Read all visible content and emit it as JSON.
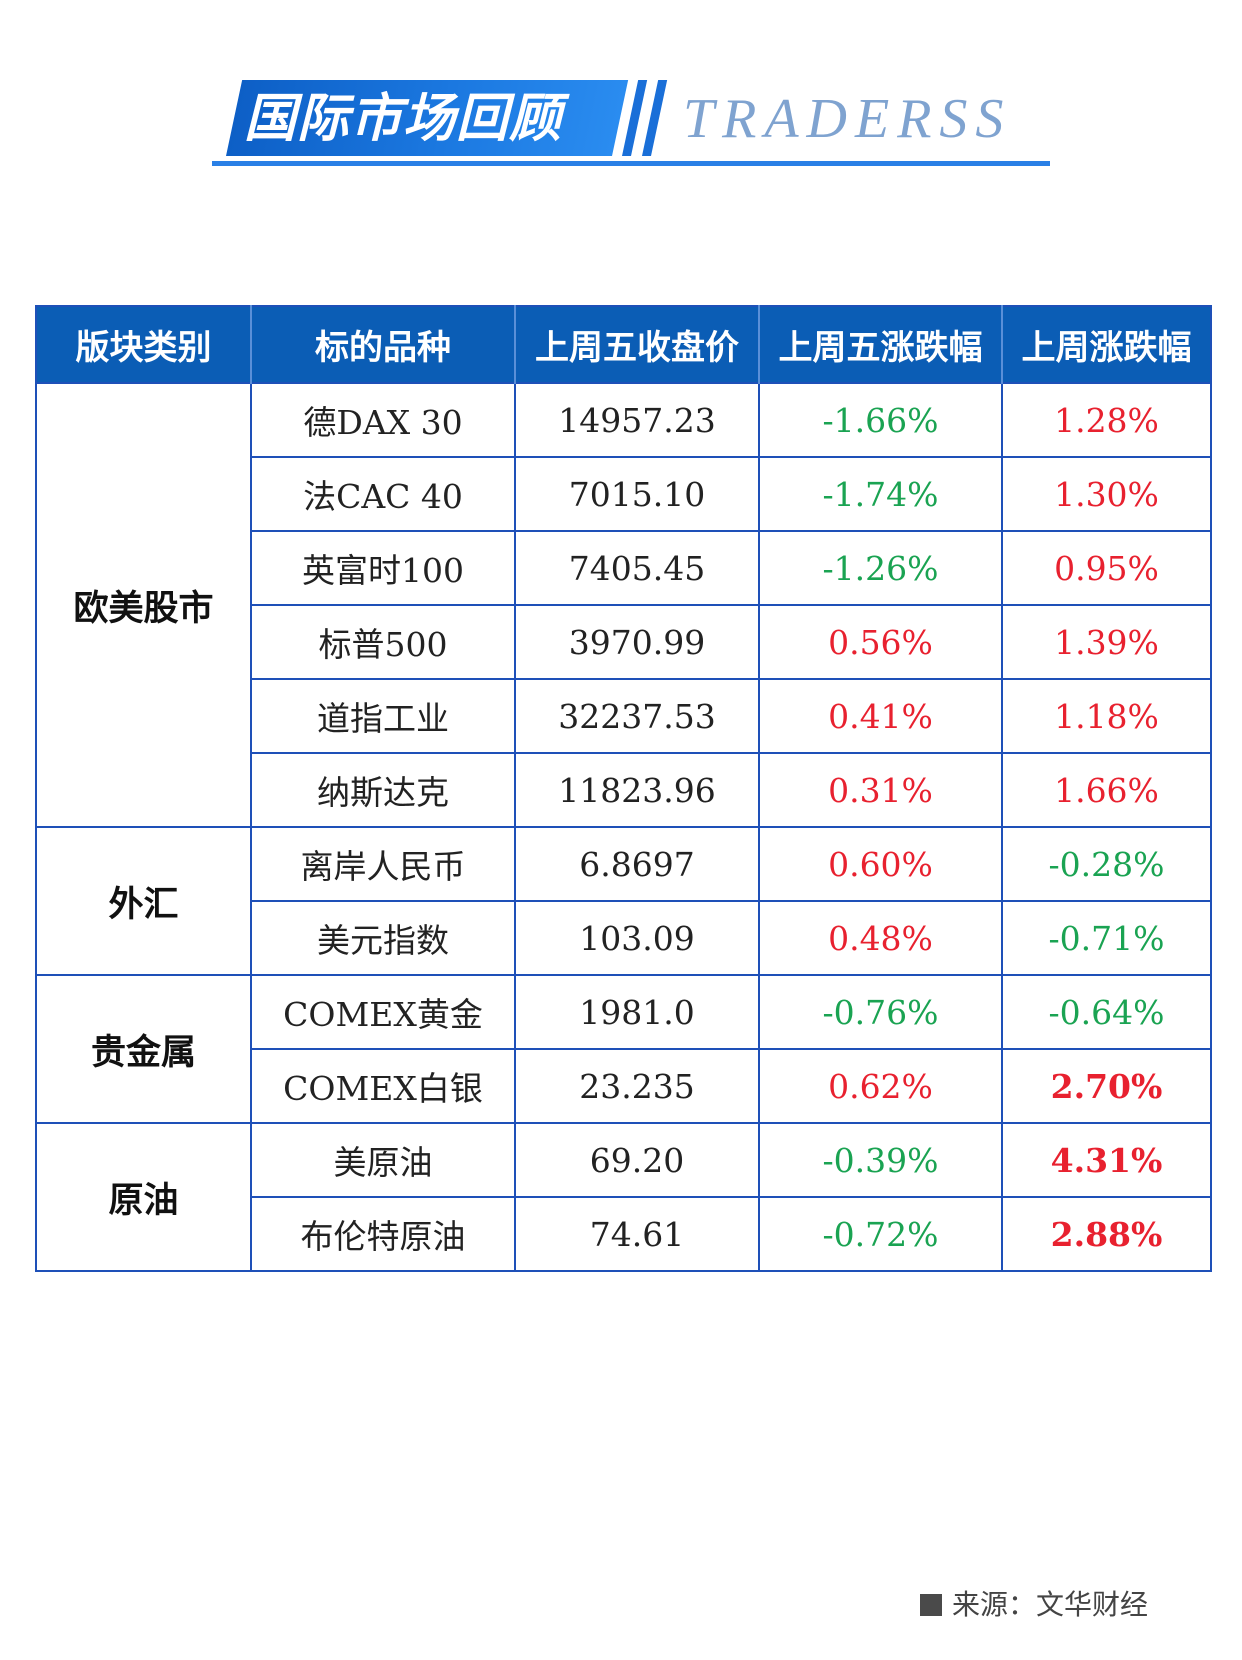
{
  "banner": {
    "title": "国际市场回顾",
    "brand": "TRADERSS"
  },
  "table": {
    "headers": [
      "版块类别",
      "标的品种",
      "上周五收盘价",
      "上周五涨跌幅",
      "上周涨跌幅"
    ],
    "groups": [
      {
        "name": "欧美股市",
        "rows": [
          {
            "name": "德DAX 30",
            "close": "14957.23",
            "fri_change": "-1.66%",
            "week_change": "1.28%"
          },
          {
            "name": "法CAC 40",
            "close": "7015.10",
            "fri_change": "-1.74%",
            "week_change": "1.30%"
          },
          {
            "name": "英富时100",
            "close": "7405.45",
            "fri_change": "-1.26%",
            "week_change": "0.95%"
          },
          {
            "name": "标普500",
            "close": "3970.99",
            "fri_change": "0.56%",
            "week_change": "1.39%"
          },
          {
            "name": "道指工业",
            "close": "32237.53",
            "fri_change": "0.41%",
            "week_change": "1.18%"
          },
          {
            "name": "纳斯达克",
            "close": "11823.96",
            "fri_change": "0.31%",
            "week_change": "1.66%"
          }
        ]
      },
      {
        "name": "外汇",
        "rows": [
          {
            "name": "离岸人民币",
            "close": "6.8697",
            "fri_change": "0.60%",
            "week_change": "-0.28%"
          },
          {
            "name": "美元指数",
            "close": "103.09",
            "fri_change": "0.48%",
            "week_change": "-0.71%"
          }
        ]
      },
      {
        "name": "贵金属",
        "rows": [
          {
            "name": "COMEX黄金",
            "close": "1981.0",
            "fri_change": "-0.76%",
            "week_change": "-0.64%"
          },
          {
            "name": "COMEX白银",
            "close": "23.235",
            "fri_change": "0.62%",
            "week_change": "2.70%"
          }
        ]
      },
      {
        "name": "原油",
        "rows": [
          {
            "name": "美原油",
            "close": "69.20",
            "fri_change": "-0.39%",
            "week_change": "4.31%"
          },
          {
            "name": "布伦特原油",
            "close": "74.61",
            "fri_change": "-0.72%",
            "week_change": "2.88%"
          }
        ]
      }
    ]
  },
  "footer": {
    "source": "来源：文华财经"
  },
  "colors": {
    "header_bg": "#0b5db5",
    "border": "#1e50b8",
    "up": "#e8212f",
    "down": "#1aa352",
    "brand_text": "#7fa3d0"
  }
}
